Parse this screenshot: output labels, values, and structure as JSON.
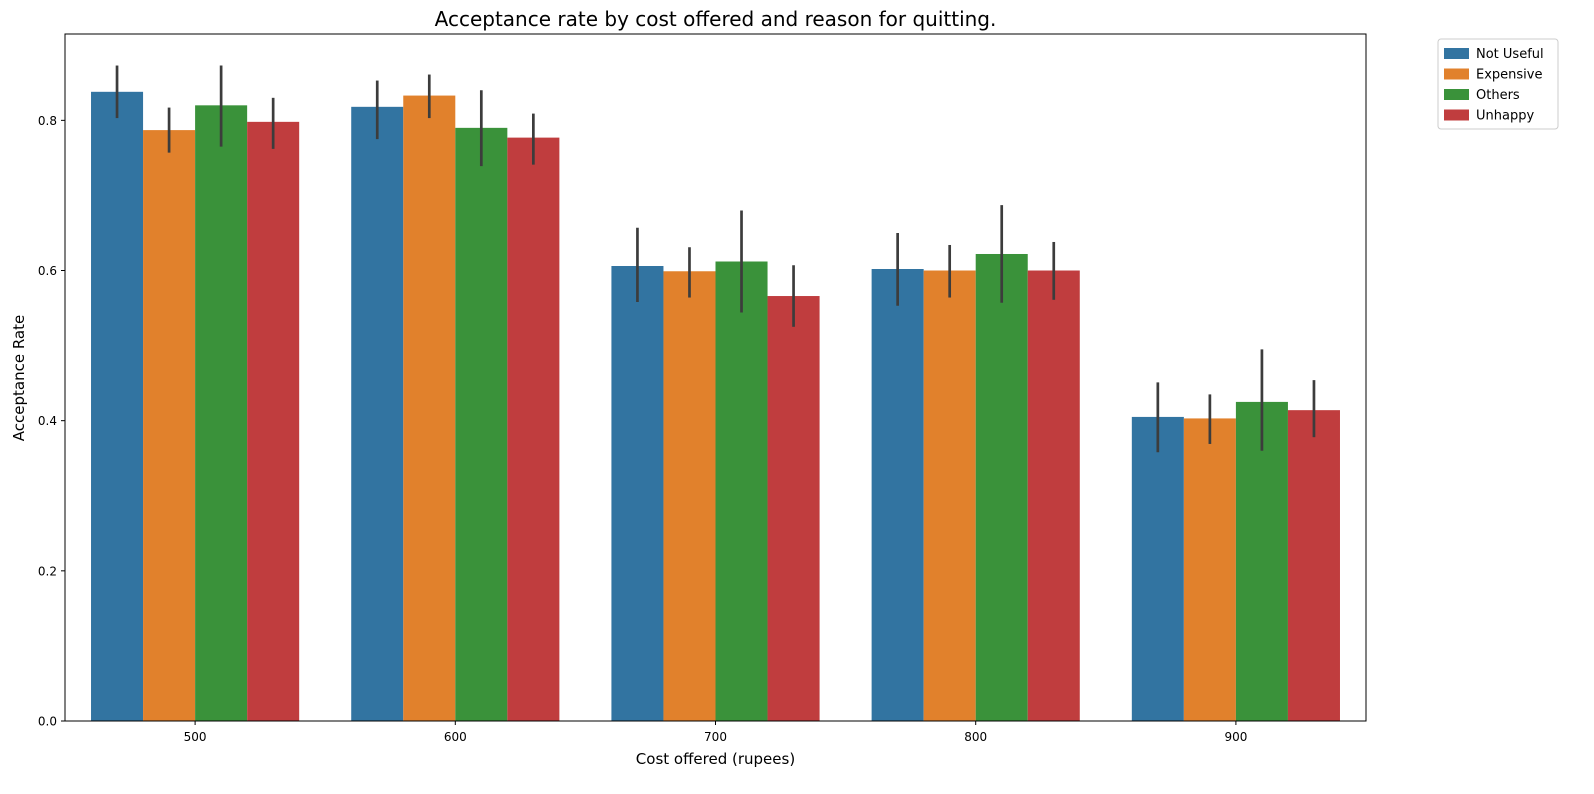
{
  "chart_data": {
    "type": "bar",
    "title": "Acceptance rate by cost offered and reason for quitting.",
    "xlabel": "Cost offered (rupees)",
    "ylabel": "Acceptance Rate",
    "categories": [
      "500",
      "600",
      "700",
      "800",
      "900"
    ],
    "ylim": [
      0,
      0.915
    ],
    "yticks": [
      0.0,
      0.2,
      0.4,
      0.6,
      0.8
    ],
    "ytick_labels": [
      "0.0",
      "0.2",
      "0.4",
      "0.6",
      "0.8"
    ],
    "grid": false,
    "legend_position": "outside-top-right",
    "series": [
      {
        "name": "Not Useful",
        "color": "#3274a1",
        "values": [
          0.838,
          0.818,
          0.606,
          0.602,
          0.405
        ],
        "ci_low": [
          0.803,
          0.775,
          0.558,
          0.553,
          0.358
        ],
        "ci_high": [
          0.873,
          0.853,
          0.657,
          0.65,
          0.451
        ]
      },
      {
        "name": "Expensive",
        "color": "#e1812c",
        "values": [
          0.787,
          0.833,
          0.599,
          0.6,
          0.403
        ],
        "ci_low": [
          0.757,
          0.803,
          0.564,
          0.564,
          0.369
        ],
        "ci_high": [
          0.817,
          0.861,
          0.631,
          0.634,
          0.435
        ]
      },
      {
        "name": "Others",
        "color": "#3a923a",
        "values": [
          0.82,
          0.79,
          0.612,
          0.622,
          0.425
        ],
        "ci_low": [
          0.765,
          0.739,
          0.544,
          0.557,
          0.36
        ],
        "ci_high": [
          0.873,
          0.84,
          0.68,
          0.687,
          0.495
        ]
      },
      {
        "name": "Unhappy",
        "color": "#c03d3e",
        "values": [
          0.798,
          0.777,
          0.566,
          0.6,
          0.414
        ],
        "ci_low": [
          0.762,
          0.741,
          0.525,
          0.561,
          0.378
        ],
        "ci_high": [
          0.83,
          0.809,
          0.607,
          0.638,
          0.454
        ]
      }
    ]
  }
}
